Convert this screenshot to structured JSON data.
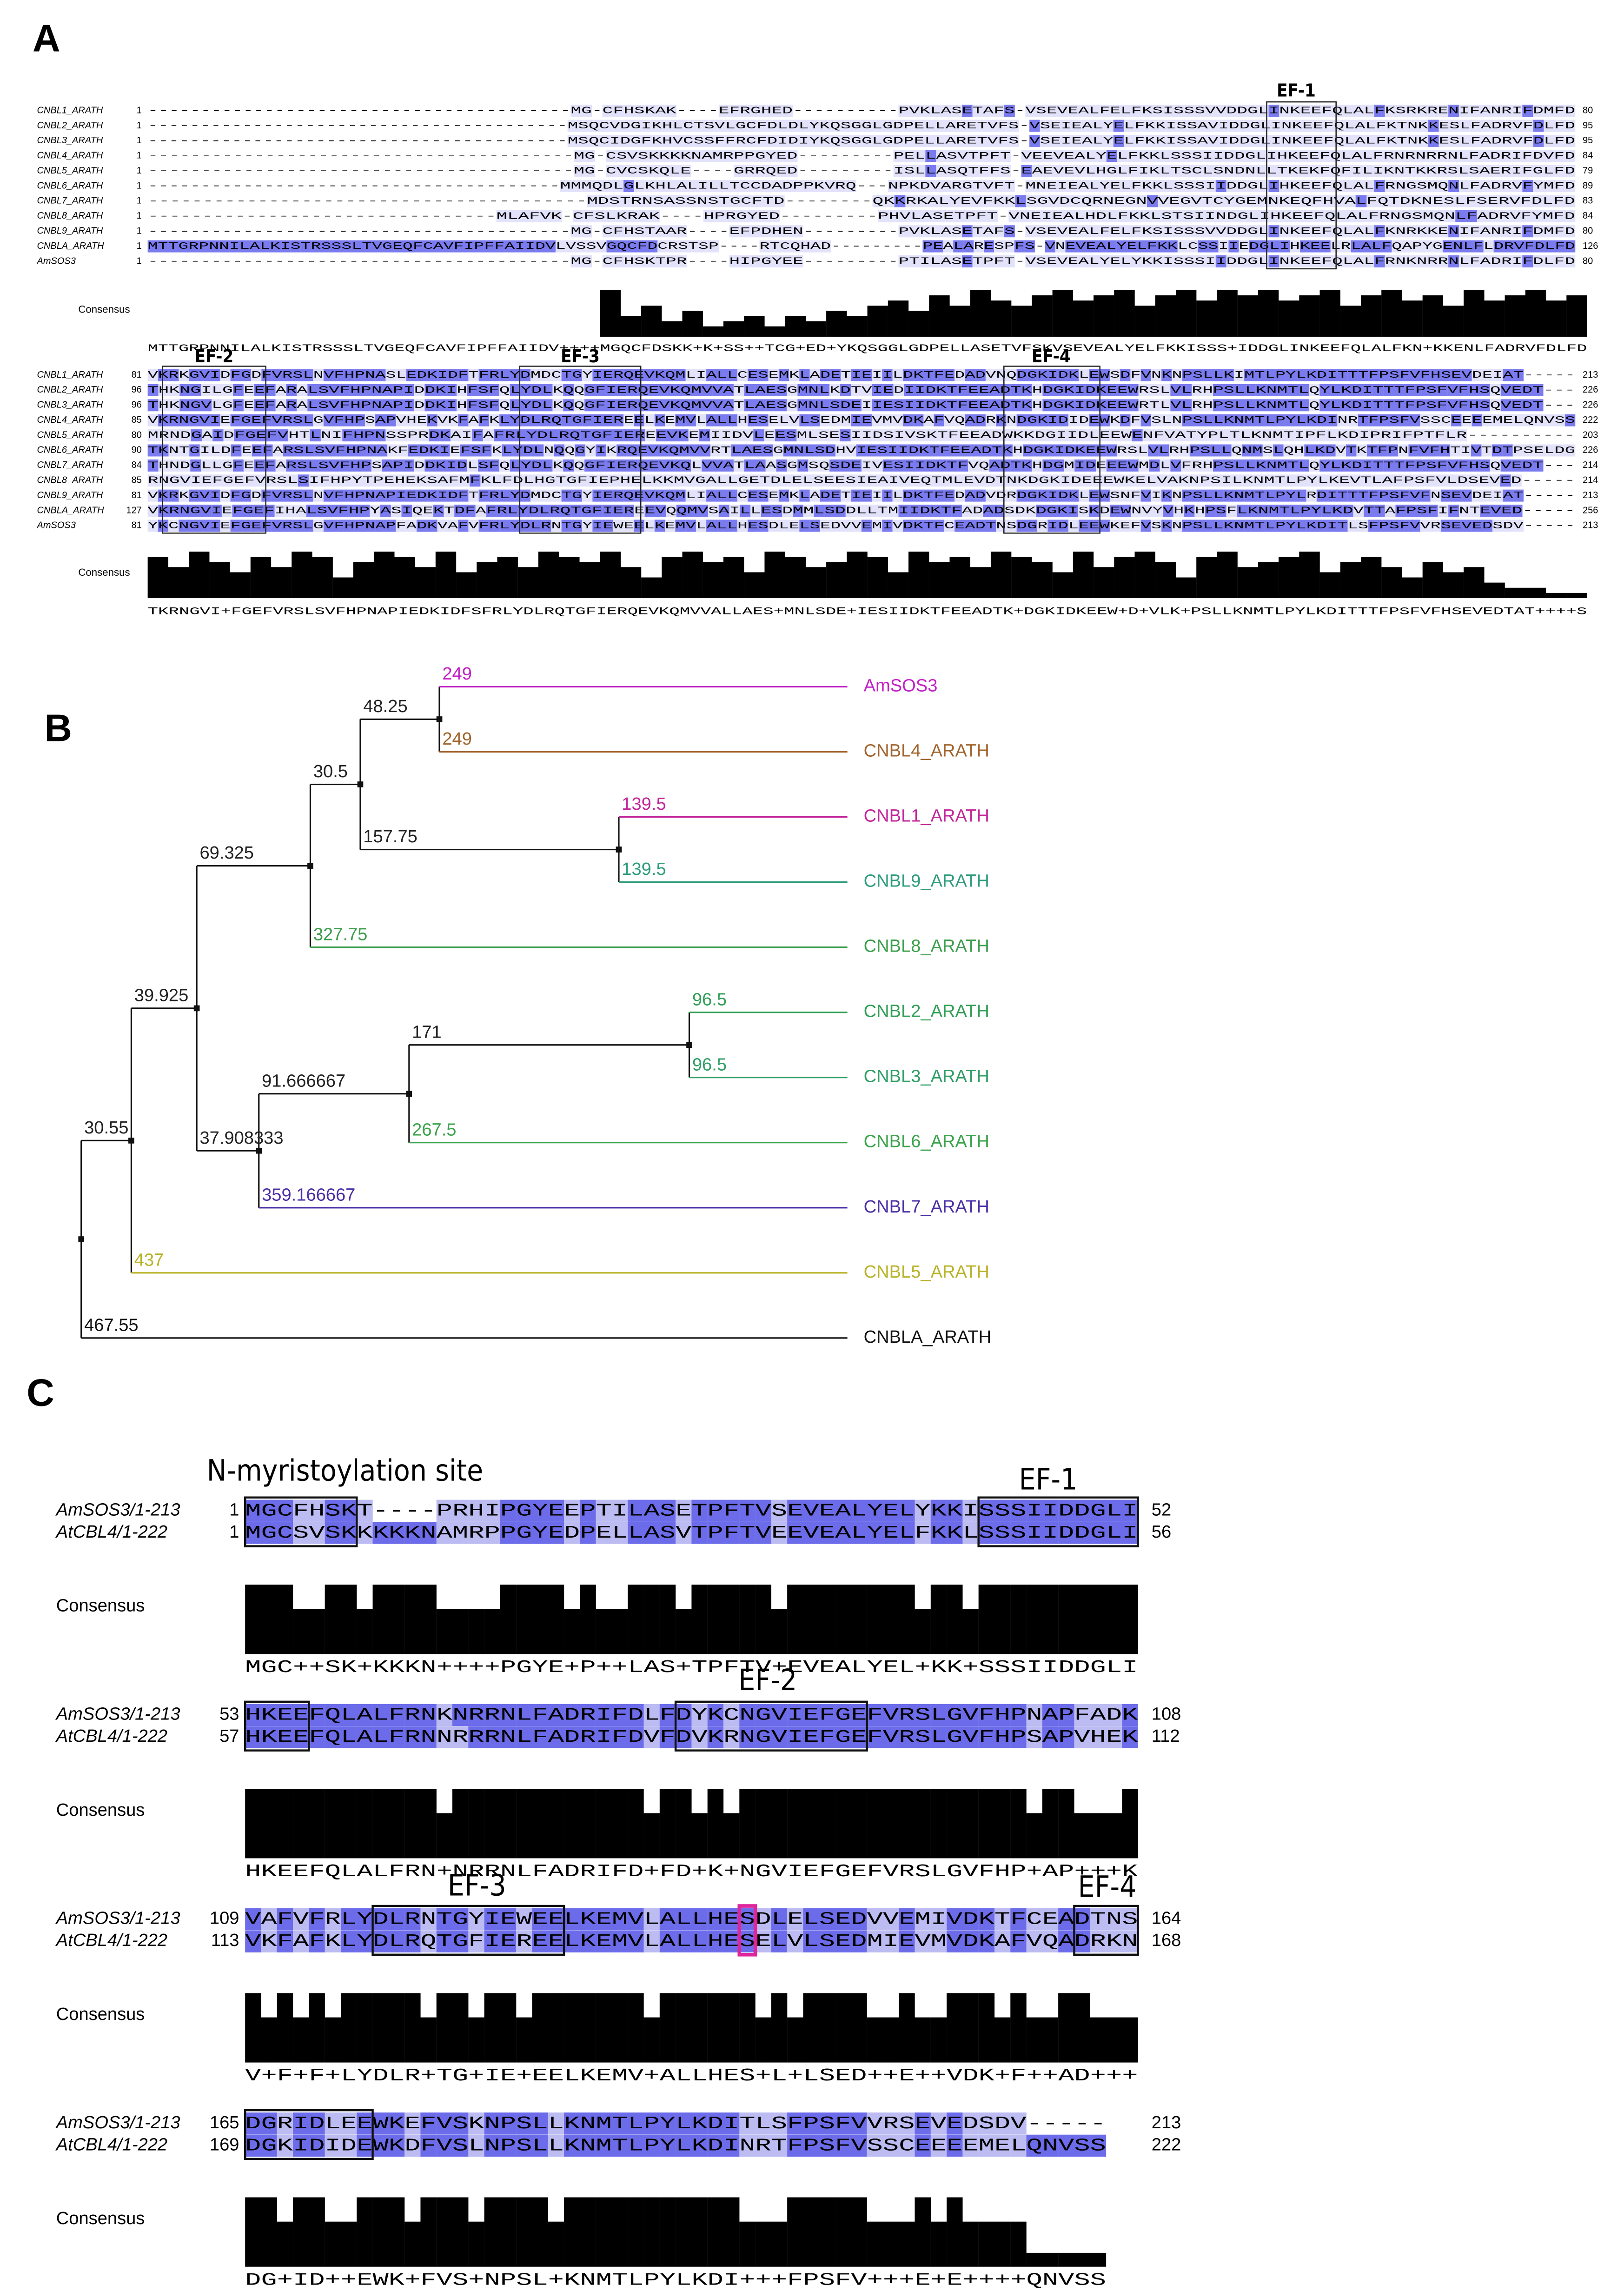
{
  "panel_a": {
    "label": "A",
    "blocks": [
      {
        "rows": [
          {
            "name": "CNBL1_ARATH",
            "start": 1,
            "sequence": "----------------------------------------MG-CFHSKAK----EFRGHED----------PVKLASETAFS-VSEVEALFELFKSISSSVVDDGLINKEEFQLALFKSRKRENIFANRIFDMFD",
            "end": 80
          },
          {
            "name": "CNBL2_ARATH",
            "start": 1,
            "sequence": "----------------------------------------MSQCVDGIKHLCTSVLGCFDLDLYKQSGGLGDPELLARETVFS-VSEIEALYELFKKISSAVIDDGLINKEEFQLALFKTNKKESLFADRVFDLFD",
            "end": 95
          },
          {
            "name": "CNBL3_ARATH",
            "start": 1,
            "sequence": "----------------------------------------MSQCIDGFKHVCSSFFRCFDIDIYKQSGGLGDPELLARETVFS-VSEIEALYELFKKISSAVIDDGLINKEEFQLALFKTNKKESLFADRVFDLFD",
            "end": 95
          },
          {
            "name": "CNBL4_ARATH",
            "start": 1,
            "sequence": "----------------------------------------MG-CSVSKKKKNAMRPPGYED---------PELLASVTPFT-VEEVEALYELFKKLSSSIIDDGLIHKEEFQLALFRNRNRRNLFADRIFDVFD",
            "end": 84
          },
          {
            "name": "CNBL5_ARATH",
            "start": 1,
            "sequence": "----------------------------------------MG-CVCSKQLE----GRRQED---------ISLLASQTFFS-EAEVEVLHGLFIKLTSCLSNDNLLTKEKFQFILIKNTKKRSLSAERIFGLFD",
            "end": 79
          },
          {
            "name": "CNBL6_ARATH",
            "start": 1,
            "sequence": "---------------------------------------MMMQDLGLKHLALILLTCCDADPPKVRQ---NPKDVARGTVFT-MNEIEALYELFKKLSSSIIDDGLIHKEEFQLALFRNGSMQNLFADRVFYMFD",
            "end": 89
          },
          {
            "name": "CNBL7_ARATH",
            "start": 1,
            "sequence": "----------------------------------------MDSTRNSASSNSTGCFTD--------QKKRKALYEVFKKLSGVDCQRNEGNVVEGVTCYGEMNKEQFHVALFQTDKNESLFSERVFDLFD",
            "end": 83
          },
          {
            "name": "CNBL8_ARATH",
            "start": 1,
            "sequence": "--------------------------------MLAFVK-CFSLKRAK----HPRGYED---------PHVLASETPFT-VNEIEALHDLFKKLSTSIINDGLIHKEEFQLALFRNGSMQNLFADRVFYMFD",
            "end": 84
          },
          {
            "name": "CNBL9_ARATH",
            "start": 1,
            "sequence": "----------------------------------------MG-CFHSTAAR----EFPDHEN---------PVKLASETAFS-VSEVEALFELFKSISSSVVDDGLINKEEFQLALFKNRKKENIFANRIFDMFD",
            "end": 80
          },
          {
            "name": "CNBLA_ARATH",
            "start": 1,
            "sequence": "MTTGRPNNILALKISTRSSSLTVGEQFCAVFIPFFAIIDVLVSSVGQCFDCRSTSP----RTCQHAD---------PEALARESPFS-VNEVEALYELFKKLCSSIIEDGLIHKEELRLALFQAPYGENLFLDRVFDLFD",
            "end": 126
          },
          {
            "name": "AmSOS3",
            "start": 1,
            "sequence": "----------------------------------------MG-CFHSKTPR----HIPGYEE---------PTILASETPFT-VSEVEALYELYKKISSSIIDDGLINKEEFQLALFRNKNRRNLFADRIFDLFD",
            "end": 80
          }
        ],
        "consensus_label": "Consensus",
        "consensus": "MTTGRPNNILALKISTRSSSLTVGEQFCAVFIPFFAIIDV++++MGQCFDSKK+K+SS++TCG+ED+YKQSGGLGDPELLASETVFSKVSEVEALYELFKKISSS+IDDGLINKEEFQLALFKN+KKENLFADRVFDLFD",
        "conservation": [
          0,
          0,
          0,
          0,
          0,
          0,
          0,
          0,
          0,
          0,
          0,
          0,
          0,
          0,
          0,
          0,
          0,
          0,
          0,
          0,
          0,
          0,
          9,
          4,
          6,
          3,
          5,
          2,
          3,
          4,
          2,
          4,
          3,
          5,
          4,
          6,
          7,
          5,
          8,
          6,
          9,
          7,
          6,
          8,
          9,
          7,
          8,
          9,
          6,
          8,
          9,
          7,
          9,
          8,
          9,
          7,
          8,
          9,
          6,
          8,
          9,
          7,
          8,
          6,
          9,
          7,
          8,
          9,
          7,
          8
        ],
        "motifs": [
          "EF-1"
        ]
      },
      {
        "rows": [
          {
            "name": "CNBL1_ARATH",
            "start": 81,
            "sequence": "VKRKGVIDFGDFVRSLNVFHPNASLEDKIDFTFRLYDMDCTGYIERQEVKQMLIALLCESEMKLADETIEIILDKTFEDADVNQDGKIDKLEWSDFVNKNPSLLKIMTLPYLKDITTTFPSFVFHSEVDEIAT-----",
            "end": 213
          },
          {
            "name": "CNBL2_ARATH",
            "start": 96,
            "sequence": "THKNGILGFEEFARALSVFHPNAPIDDKIHFSFQLYDLKQQGFIERQEVKQMVVATLAESGMNLKDTVIEDIIDKTFEEADTKHDGKIDKEEWRSLVLRHPSLLKNMTLQYLKDITTTFPSFVFHSQVEDT---",
            "end": 226
          },
          {
            "name": "CNBL3_ARATH",
            "start": 96,
            "sequence": "THKNGVLGFEEFARALSVFHPNAPIDDKIHFSFQLYDLKQQGFIERQEVKQMVVATLAESGMNLSDEIIESIIDKTFEEADTKHDGKIDKEEWRTLVLRHPSLLKNMTLQYLKDITTTFPSFVFHSQVEDT---",
            "end": 226
          },
          {
            "name": "CNBL4_ARATH",
            "start": 85,
            "sequence": "VKRNGVIEFGEFVRSLGVFHPSAPVHEKVKFAFKLYDLRQTGFIEREELKEMVLALLHESELVLSEDMIEVMVDKAFVQADRKNDGKIDIDEWKDFVSLNPSLLKNMTLPYLKDINRTFPSFVSSCEEEEMELQNVSS",
            "end": 222
          },
          {
            "name": "CNBL5_ARATH",
            "start": 80,
            "sequence": "MRNDGAIDFGEFVHTLNIFHPNSSPRDKAIFAFRLYDLRQTGFIEREEVKEMIIDVLEESMLSESIIDSIVSKTFEEADWKKDGIIDLEEWENFVATYPLTLKNMTIPFLKDIPRIFPTFLR----------",
            "end": 203
          },
          {
            "name": "CNBL6_ARATH",
            "start": 90,
            "sequence": "TKNTGILDFEEFARSLSVFHPNAKFEDKIEFSFKLYDLNQQGYIKRQEVKQMVVRTLAESGMNLSDHVIESIIDKTFEEADTKHDGKIDKEEWRSLVLRHPSLLQNMSLQHLKDVTKTFPNFVFHTIVTDTPSELDG",
            "end": 226
          },
          {
            "name": "CNBL7_ARATH",
            "start": 84,
            "sequence": "THNDGLLGFEEFARSLSVFHPSAPIDDKIDLSFQLYDLKQQGFIERQEVKQLVVATLAASGMSQSDEIVESIIDKTFVQADTKHDGMIDEEEWMDLVFRHPSLLKNMTLQYLKDITTTFPSFVFHSQVEDT---",
            "end": 214
          },
          {
            "name": "CNBL8_ARATH",
            "start": 85,
            "sequence": "RNGVIEFGEFVRSLSIFHPYTPEHEKSAFMFKLFDLHGTGFIEPHELKKMVGALLGETDLELSEESIEAIVEQTMLEVDTNKDGKIDEEEWKELVAKNPSILKNMTLPYLKEVTLAFPSFVLDSEVED-----",
            "end": 214
          },
          {
            "name": "CNBL9_ARATH",
            "start": 81,
            "sequence": "VKRKGVIDFGDFVRSLNVFHPNAPIEDKIDFTFRLYDMDCTGYIERQEVKQMLIALLCESEMKLADETIEIILDKTFEDADVDRDGKIDKLEWSNFVIKNPSLLKNMTLPYLRDITTTFPSFVFNSEVDEIAT-----",
            "end": 213
          },
          {
            "name": "CNBLA_ARATH",
            "start": 127,
            "sequence": "VKRNGVIEFGEFIHALSVFHPYASIQEKTDFAFRLYDLRQTGFIEREEVQQMVSAILLESDMMLSDDLLTMIIDKTFADADSDKDGKISKDEWNVYVHKHPSFLKNMTLPYLKDVTTAFPSFIFNTEVED-----",
            "end": 256
          },
          {
            "name": "AmSOS3",
            "start": 81,
            "sequence": "YKCNGVIEFGEFVRSLGVFHPNAPFADKVAFVFRLYDLRNTGYIEWEELKEMVLALLHESDLELSEDVVEMIVDKTFCEADTNSDGRIDLEEWKEFVSKNPSLLKNMTLPYLKDITLSFPSFVVRSEVEDSDV-----",
            "end": 213
          }
        ],
        "consensus_label": "Consensus",
        "consensus": "TKRNGVI+FGEFVRSLSVFHPNAPIEDKIDFSFRLYDLRQTGFIERQEVKQMVVALLAES+MNLSDE+IESIIDKTFEEADTK+DGKIDKEEW+D+VLK+PSLLKNMTLPYLKDITTTFPSFVFHSEVEDTAT++++S",
        "conservation": [
          8,
          6,
          9,
          7,
          5,
          8,
          6,
          9,
          8,
          4,
          7,
          9,
          8,
          6,
          9,
          5,
          7,
          8,
          6,
          9,
          8,
          7,
          9,
          6,
          4,
          8,
          9,
          7,
          8,
          5,
          9,
          8,
          6,
          7,
          9,
          8,
          5,
          9,
          7,
          8,
          6,
          9,
          8,
          7,
          5,
          9,
          6,
          8,
          9,
          7,
          4,
          8,
          9,
          6,
          7,
          8,
          9,
          5,
          7,
          8,
          6,
          4,
          7,
          5,
          6,
          3,
          2,
          2,
          1,
          1
        ],
        "motifs": [
          "EF-2",
          "EF-3",
          "EF-4"
        ]
      }
    ]
  },
  "panel_b": {
    "label": "B",
    "tree": {
      "children": [
        {
          "length": 30.55,
          "children": [
            {
              "length": 39.925,
              "children": [
                {
                  "length": 69.325,
                  "children": [
                    {
                      "length": 30.5,
                      "children": [
                        {
                          "length": 48.25,
                          "children": [
                            {
                              "length": 249,
                              "name": "AmSOS3",
                              "color": "#c21fc6"
                            },
                            {
                              "length": 249,
                              "name": "CNBL4_ARATH",
                              "color": "#a0642c"
                            }
                          ]
                        },
                        {
                          "length": 157.75,
                          "children": [
                            {
                              "length": 139.5,
                              "name": "CNBL1_ARATH",
                              "color": "#c2259a"
                            },
                            {
                              "length": 139.5,
                              "name": "CNBL9_ARATH",
                              "color": "#2e9c7c"
                            }
                          ]
                        }
                      ]
                    },
                    {
                      "length": 327.75,
                      "name": "CNBL8_ARATH",
                      "color": "#3c9e4c"
                    }
                  ]
                },
                {
                  "length": 37.908333,
                  "children": [
                    {
                      "length": 91.666667,
                      "children": [
                        {
                          "length": 171,
                          "children": [
                            {
                              "length": 96.5,
                              "name": "CNBL2_ARATH",
                              "color": "#2f9e55"
                            },
                            {
                              "length": 96.5,
                              "name": "CNBL3_ARATH",
                              "color": "#2f9e66"
                            }
                          ]
                        },
                        {
                          "length": 267.5,
                          "name": "CNBL6_ARATH",
                          "color": "#3aa34a"
                        }
                      ]
                    },
                    {
                      "length": 359.166667,
                      "name": "CNBL7_ARATH",
                      "color": "#4a2ea6"
                    }
                  ]
                }
              ]
            },
            {
              "length": 437,
              "name": "CNBL5_ARATH",
              "color": "#b9b228"
            }
          ]
        },
        {
          "length": 467.55,
          "name": "CNBLA_ARATH",
          "color": "#111111"
        }
      ]
    }
  },
  "panel_c": {
    "label": "C",
    "annotation": "N-myristoylation site",
    "blocks": [
      {
        "rows": [
          {
            "name": "AmSOS3/1-213",
            "start": 1,
            "sequence": "MGCFHSKT----PRHIPGYEEPTILASETPFTVSEVEALYELYKKISSSIIDDGLI",
            "end": 52
          },
          {
            "name": "AtCBL4/1-222",
            "start": 1,
            "sequence": "MGCSVSKKKKKNAMRPPGYEDPELLASVTPFTVEEVEALYELFKKLSSSIIDDGLI",
            "end": 56
          }
        ],
        "consensus_label": "Consensus",
        "consensus": "MGC++SK+KKKN++++PGYE+P++LAS+TPFTV+EVEALYEL+KK+SSSIIDDGLI",
        "conservation": [
          100,
          100,
          100,
          65,
          65,
          100,
          100,
          65,
          100,
          100,
          100,
          100,
          65,
          65,
          65,
          65,
          100,
          100,
          100,
          100,
          65,
          100,
          65,
          65,
          100,
          100,
          100,
          65,
          100,
          100,
          100,
          100,
          100,
          65,
          100,
          100,
          100,
          100,
          100,
          100,
          100,
          100,
          65,
          100,
          100,
          65,
          100,
          100,
          100,
          100,
          100,
          100,
          100,
          100,
          100,
          100
        ],
        "motifs": [
          "EF-1"
        ]
      },
      {
        "rows": [
          {
            "name": "AmSOS3/1-213",
            "start": 53,
            "sequence": "HKEEFQLALFRNKNRRNLFADRIFDLFDYKCNGVIEFGEFVRSLGVFHPNAPFADK",
            "end": 108
          },
          {
            "name": "AtCBL4/1-222",
            "start": 57,
            "sequence": "HKEEFQLALFRNNRRRNLFADRIFDVFDVKRNGVIEFGEFVRSLGVFHPSAPVHEK",
            "end": 112
          }
        ],
        "consensus_label": "Consensus",
        "consensus": "HKEEFQLALFRN+NRRNLFADRIFD+FD+K+NGVIEFGEFVRSLGVFHP+AP+++K",
        "conservation": [
          100,
          100,
          100,
          100,
          100,
          100,
          100,
          100,
          100,
          100,
          100,
          100,
          65,
          100,
          100,
          100,
          100,
          100,
          100,
          100,
          100,
          100,
          100,
          100,
          100,
          65,
          100,
          100,
          65,
          100,
          65,
          100,
          100,
          100,
          100,
          100,
          100,
          100,
          100,
          100,
          100,
          100,
          100,
          100,
          100,
          100,
          100,
          100,
          100,
          65,
          100,
          100,
          65,
          65,
          65,
          100
        ],
        "motifs": [
          "EF-2"
        ]
      },
      {
        "rows": [
          {
            "name": "AmSOS3/1-213",
            "start": 109,
            "sequence": "VAFVFRLYDLRNTGYIEWEELKEMVLALLHESDLELSEDVVEMIVDKTFCEADTNS",
            "end": 164
          },
          {
            "name": "AtCBL4/1-222",
            "start": 113,
            "sequence": "VKFAFKLYDLRQTGFIEREELKEMVLALLHESELVLSEDMIEVMVDKAFVQADRKN",
            "end": 168
          }
        ],
        "consensus_label": "Consensus",
        "consensus": "V+F+F+LYDLR+TG+IE+EELKEMV+ALLHES+L+LSED++E++VDK+F++AD+++",
        "conservation": [
          100,
          65,
          100,
          65,
          100,
          65,
          100,
          100,
          100,
          100,
          100,
          65,
          100,
          100,
          65,
          100,
          100,
          65,
          100,
          100,
          100,
          100,
          100,
          100,
          100,
          65,
          100,
          100,
          100,
          100,
          100,
          100,
          65,
          100,
          65,
          100,
          100,
          100,
          100,
          65,
          65,
          100,
          65,
          65,
          100,
          100,
          100,
          65,
          100,
          65,
          65,
          100,
          100,
          65,
          65,
          65
        ],
        "motifs": [
          "EF-3",
          "EF-4"
        ]
      },
      {
        "rows": [
          {
            "name": "AmSOS3/1-213",
            "start": 165,
            "sequence": "DGRIDLEEWKEFVSKNPSLLKNMTLPYLKDITLSFPSFVVRSEVEDSDV-----",
            "end": 213
          },
          {
            "name": "AtCBL4/1-222",
            "start": 169,
            "sequence": "DGKIDIDEWKDFVSLNPSLLKNMTLPYLKDINRTFPSFVSSCEEEEMELQNVSS",
            "end": 222
          }
        ],
        "consensus_label": "Consensus",
        "consensus": "DG+ID++EWK+FVS+NPSL+KNMTLPYLKDI+++FPSFV+++E+E++++QNVSS",
        "conservation": [
          100,
          100,
          65,
          100,
          100,
          65,
          65,
          100,
          100,
          100,
          65,
          100,
          100,
          100,
          65,
          100,
          100,
          100,
          100,
          65,
          100,
          100,
          100,
          100,
          100,
          100,
          100,
          100,
          100,
          100,
          100,
          65,
          65,
          65,
          100,
          100,
          100,
          100,
          100,
          65,
          65,
          65,
          100,
          65,
          100,
          65,
          65,
          65,
          65,
          20,
          20,
          20,
          20,
          20
        ],
        "motifs": []
      }
    ]
  }
}
